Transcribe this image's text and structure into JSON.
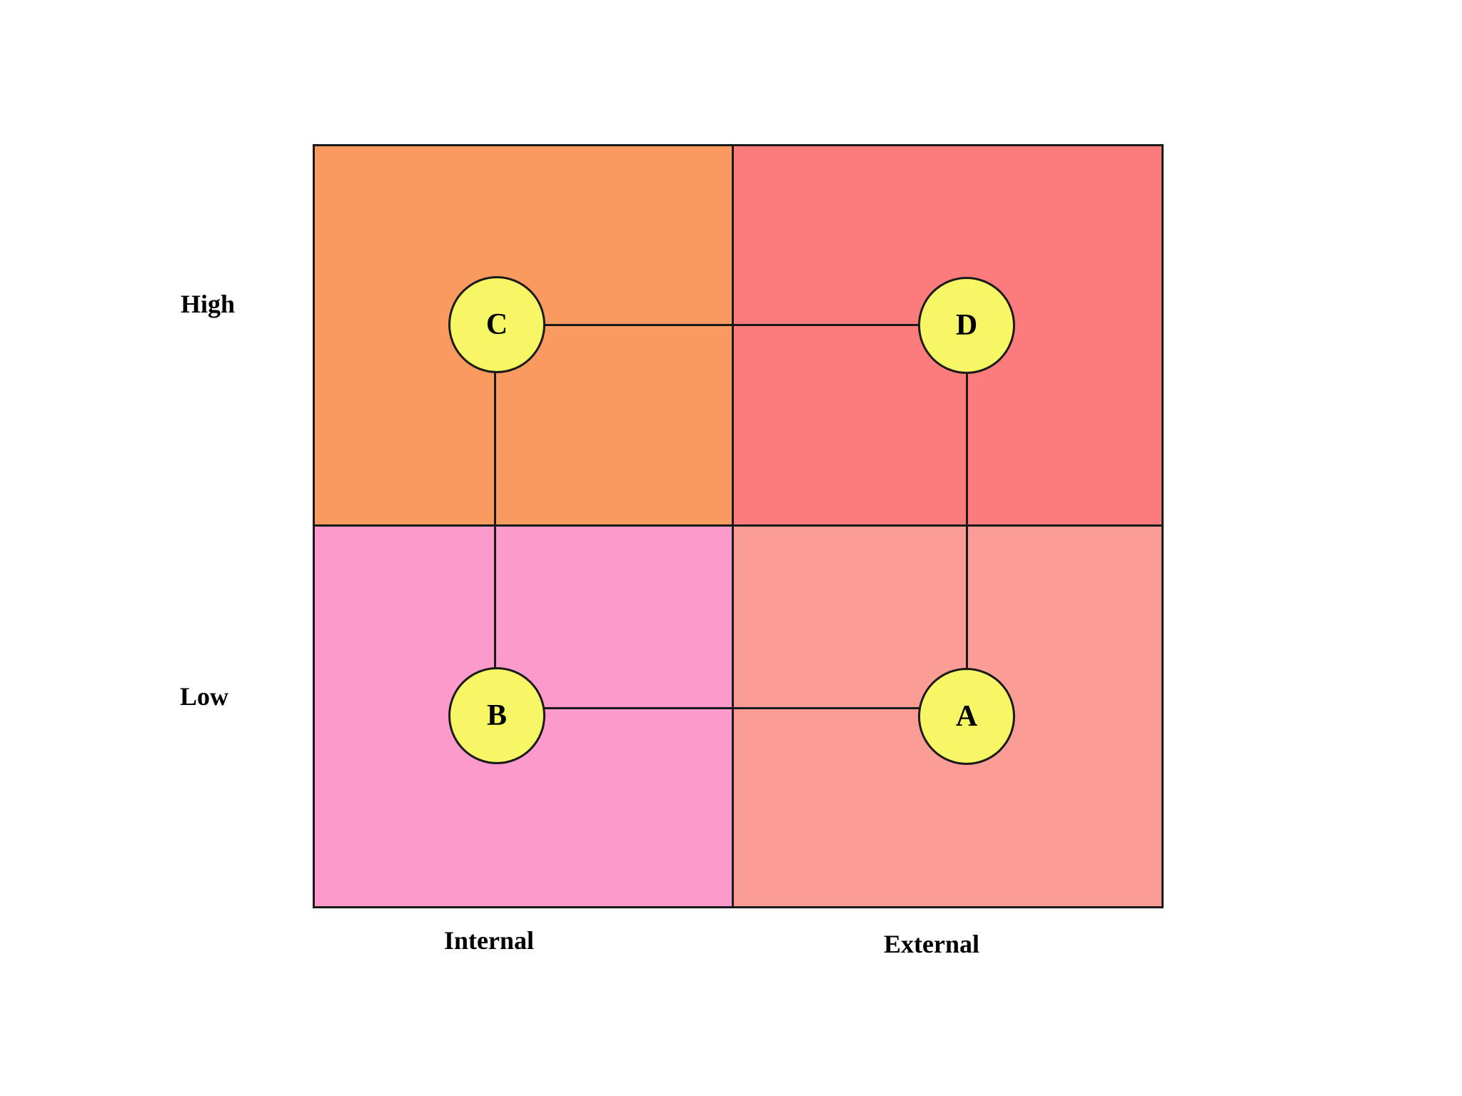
{
  "matrix": {
    "row_labels": [
      {
        "label": "High"
      },
      {
        "label": "Low"
      }
    ],
    "col_labels": [
      {
        "label": "Internal"
      },
      {
        "label": "External"
      }
    ],
    "quadrants": [
      {
        "name": "high-internal",
        "color": "#F99A61"
      },
      {
        "name": "high-external",
        "color": "#FC7B7C"
      },
      {
        "name": "low-internal",
        "color": "#FB9ACB"
      },
      {
        "name": "low-external",
        "color": "#FA9D96"
      }
    ],
    "nodes": [
      {
        "id": "C",
        "label": "C",
        "quadrant": "high-internal"
      },
      {
        "id": "D",
        "label": "D",
        "quadrant": "high-external"
      },
      {
        "id": "B",
        "label": "B",
        "quadrant": "low-internal"
      },
      {
        "id": "A",
        "label": "A",
        "quadrant": "low-external"
      }
    ],
    "node_style": {
      "fill": "#F7F766",
      "border": "#1A1A1A"
    },
    "connections": [
      {
        "from": "C",
        "to": "D"
      },
      {
        "from": "C",
        "to": "B"
      },
      {
        "from": "B",
        "to": "A"
      },
      {
        "from": "D",
        "to": "A"
      }
    ]
  }
}
